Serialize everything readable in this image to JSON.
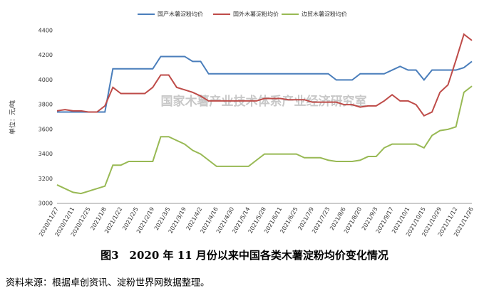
{
  "chart_data": {
    "type": "line",
    "ylabel": "单位：元/吨",
    "annotation": "国家木薯产业技术体系产业经济研究室",
    "caption": "图3　2020 年 11 月份以来中国各类木薯淀粉均价变化情况",
    "source": "资料来源：根据卓创资讯、淀粉世界网数据整理。",
    "categories": [
      "2020/11/27",
      null,
      "2020/12/11",
      null,
      "2020/12/25",
      null,
      "2021/1/8",
      null,
      "2021/1/22",
      null,
      "2021/2/5",
      null,
      "2021/2/19",
      null,
      "2021/3/5",
      null,
      "2021/3/19",
      null,
      "2021/4/2",
      null,
      "2021/4/16",
      null,
      "2021/4/30",
      null,
      "2021/5/14",
      null,
      "2021/5/28",
      null,
      "2021/6/11",
      null,
      "2021/6/25",
      null,
      "2021/7/9",
      null,
      "2021/7/23",
      null,
      "2021/8/6",
      null,
      "2021/8/20",
      null,
      "2021/9/3",
      null,
      "2021/9/17",
      null,
      "2021/10/1",
      null,
      "2021/10/15",
      null,
      "2021/10/29",
      null,
      "2021/11/12",
      null,
      "2021/11/26"
    ],
    "series": [
      {
        "name": "国产木薯淀粉均价",
        "color": "#4a7ebb",
        "values": [
          3740,
          3740,
          3740,
          3740,
          3740,
          3740,
          3740,
          4090,
          4090,
          4090,
          4090,
          4090,
          4090,
          4190,
          4190,
          4190,
          4190,
          4150,
          4150,
          4050,
          4050,
          4050,
          4050,
          4050,
          4050,
          4050,
          4050,
          4050,
          4050,
          4050,
          4050,
          4050,
          4050,
          4050,
          4050,
          4000,
          4000,
          4000,
          4050,
          4050,
          4050,
          4050,
          4080,
          4110,
          4080,
          4080,
          4000,
          4080,
          4080,
          4080,
          4080,
          4100,
          4150
        ]
      },
      {
        "name": "国外木薯淀粉均价",
        "color": "#be4b48",
        "values": [
          3750,
          3760,
          3750,
          3750,
          3740,
          3740,
          3790,
          3940,
          3890,
          3890,
          3890,
          3890,
          3940,
          4040,
          4040,
          3940,
          3920,
          3900,
          3870,
          3830,
          3830,
          3830,
          3830,
          3830,
          3830,
          3830,
          3850,
          3850,
          3850,
          3840,
          3840,
          3840,
          3820,
          3820,
          3820,
          3820,
          3800,
          3800,
          3780,
          3790,
          3790,
          3830,
          3880,
          3830,
          3830,
          3800,
          3710,
          3740,
          3900,
          3960,
          4160,
          4370,
          4320
        ]
      },
      {
        "name": "边贸木薯淀粉均价",
        "color": "#98b954",
        "values": [
          3150,
          3120,
          3090,
          3080,
          3100,
          3120,
          3140,
          3310,
          3310,
          3340,
          3340,
          3340,
          3340,
          3540,
          3540,
          3510,
          3480,
          3430,
          3400,
          3350,
          3300,
          3300,
          3300,
          3300,
          3300,
          3350,
          3400,
          3400,
          3400,
          3400,
          3400,
          3370,
          3370,
          3370,
          3350,
          3340,
          3340,
          3340,
          3350,
          3380,
          3380,
          3450,
          3480,
          3480,
          3480,
          3480,
          3450,
          3550,
          3590,
          3600,
          3620,
          3900,
          3950
        ]
      }
    ],
    "ylim": [
      3000,
      4400
    ],
    "yticks": [
      3000,
      3200,
      3400,
      3600,
      3800,
      4000,
      4200,
      4400
    ],
    "grid": false,
    "legend": "top"
  }
}
